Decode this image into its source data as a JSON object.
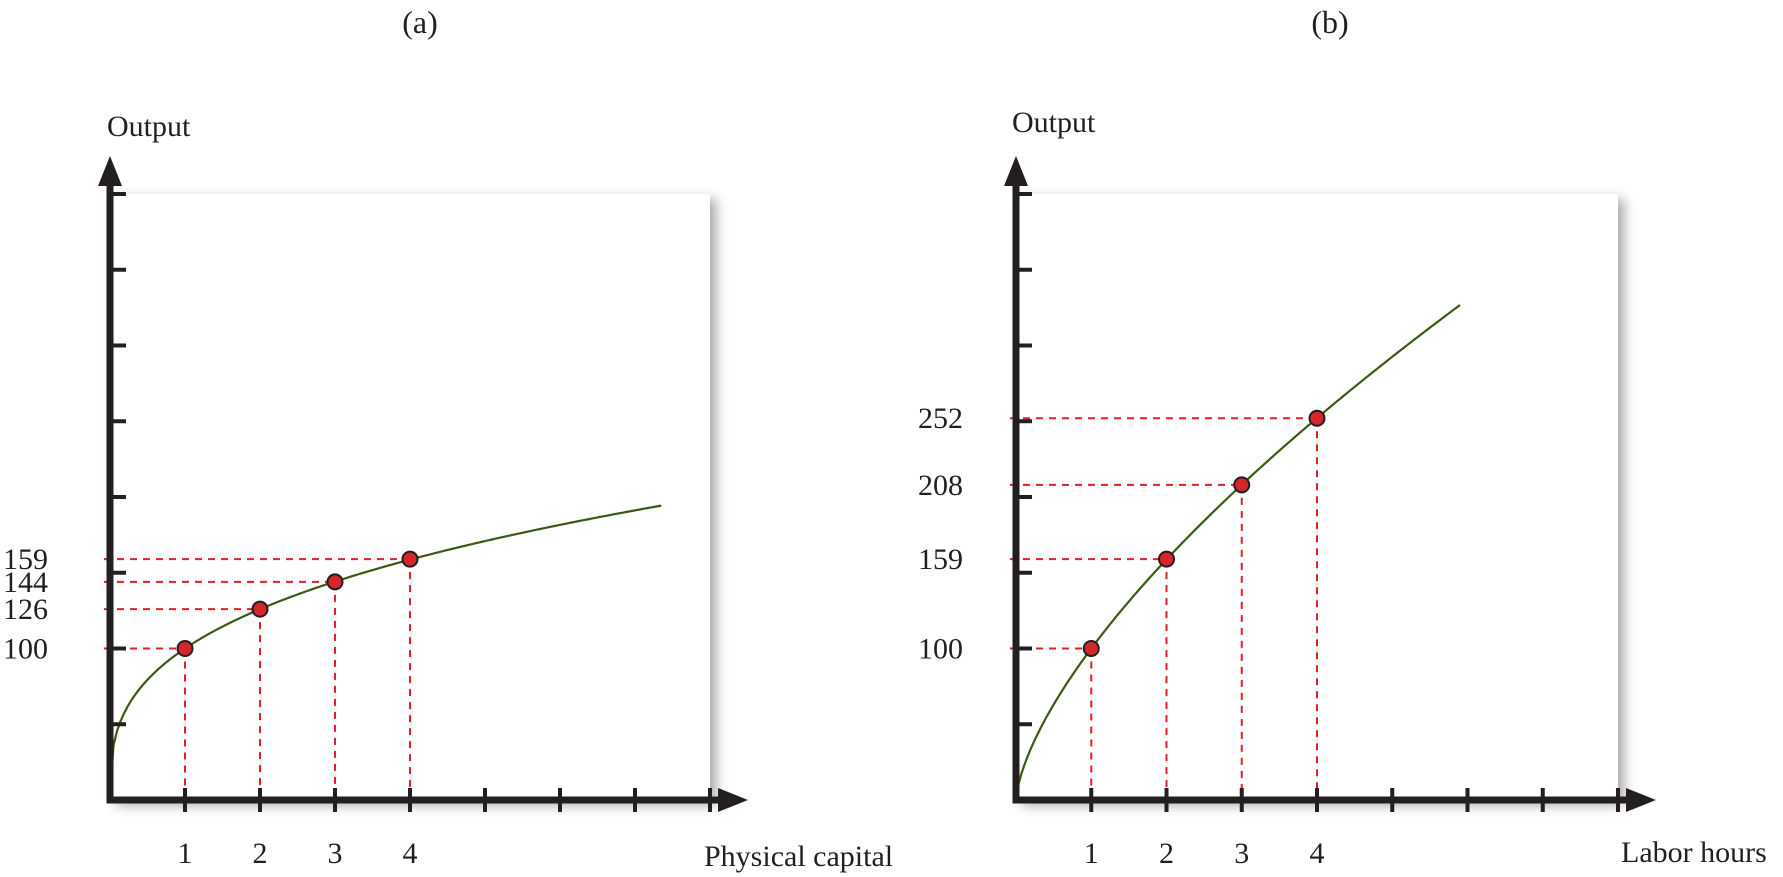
{
  "chart_data": [
    {
      "type": "line",
      "title": "(a)",
      "xlabel": "Physical capital",
      "ylabel": "Output",
      "xlim": [
        0,
        8
      ],
      "ylim": [
        0,
        400
      ],
      "x_ticks": [
        1,
        2,
        3,
        4,
        5,
        6,
        7,
        8
      ],
      "x_tick_labels": [
        "1",
        "2",
        "3",
        "4"
      ],
      "y_ticks": [
        50,
        100,
        150,
        200,
        250,
        300,
        350,
        400
      ],
      "y_tick_labels": [
        100,
        126,
        144,
        159
      ],
      "grid": false,
      "curve": {
        "x_end": 7.35,
        "exponent": 0.333
      },
      "series": [
        {
          "x": [
            1,
            2,
            3,
            4
          ],
          "y": [
            100,
            126,
            144,
            159
          ]
        }
      ]
    },
    {
      "type": "line",
      "title": "(b)",
      "xlabel": "Labor hours",
      "ylabel": "Output",
      "xlim": [
        0,
        8
      ],
      "ylim": [
        0,
        400
      ],
      "x_ticks": [
        1,
        2,
        3,
        4,
        5,
        6,
        7,
        8
      ],
      "x_tick_labels": [
        "1",
        "2",
        "3",
        "4"
      ],
      "y_ticks": [
        50,
        100,
        150,
        200,
        250,
        300,
        350,
        400
      ],
      "y_tick_labels": [
        100,
        159,
        208,
        252
      ],
      "grid": false,
      "curve": {
        "x_end": 5.9,
        "exponent": 0.667
      },
      "series": [
        {
          "x": [
            1,
            2,
            3,
            4
          ],
          "y": [
            100,
            159,
            208,
            252
          ]
        }
      ]
    }
  ],
  "colors": {
    "axis": "#231f20",
    "curve": "#3c5a14",
    "guide": "#e41e26",
    "point_fill": "#d7262b",
    "point_stroke": "#231f20",
    "panel_fill": "#ffffff",
    "panel_shadow": "#9a9a9a"
  }
}
